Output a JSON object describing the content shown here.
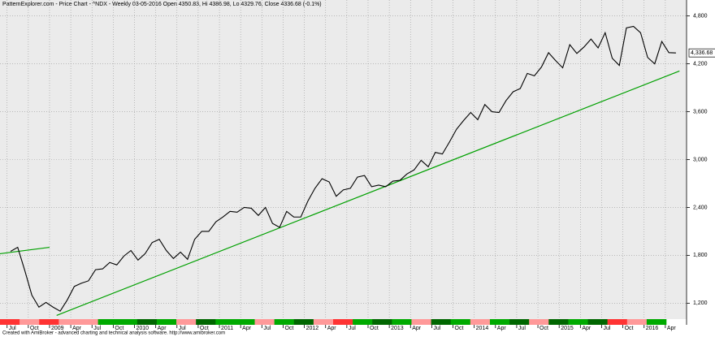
{
  "chart_data": {
    "type": "line",
    "title": "PatternExplorer.com - Price Chart - ^NDX - Weekly 03-05-2016 Open 4350.83, Hi 4386.98, Lo 4329.76, Close 4336.68 (-0.1%)",
    "footer": "Created with AmiBroker - advanced charting and technical analysis software. http://www.amibroker.com",
    "x": [
      "2008-07",
      "2008-08",
      "2008-09",
      "2008-10",
      "2008-11",
      "2008-12",
      "2009-01",
      "2009-02",
      "2009-03",
      "2009-04",
      "2009-05",
      "2009-06",
      "2009-07",
      "2009-08",
      "2009-09",
      "2009-10",
      "2009-11",
      "2009-12",
      "2010-01",
      "2010-02",
      "2010-03",
      "2010-04",
      "2010-05",
      "2010-06",
      "2010-07",
      "2010-08",
      "2010-09",
      "2010-10",
      "2010-11",
      "2010-12",
      "2011-01",
      "2011-02",
      "2011-03",
      "2011-04",
      "2011-05",
      "2011-06",
      "2011-07",
      "2011-08",
      "2011-09",
      "2011-10",
      "2011-11",
      "2011-12",
      "2012-01",
      "2012-02",
      "2012-03",
      "2012-04",
      "2012-05",
      "2012-06",
      "2012-07",
      "2012-08",
      "2012-09",
      "2012-10",
      "2012-11",
      "2012-12",
      "2013-01",
      "2013-02",
      "2013-03",
      "2013-04",
      "2013-05",
      "2013-06",
      "2013-07",
      "2013-08",
      "2013-09",
      "2013-10",
      "2013-11",
      "2013-12",
      "2014-01",
      "2014-02",
      "2014-03",
      "2014-04",
      "2014-05",
      "2014-06",
      "2014-07",
      "2014-08",
      "2014-09",
      "2014-10",
      "2014-11",
      "2014-12",
      "2015-01",
      "2015-02",
      "2015-03",
      "2015-04",
      "2015-05",
      "2015-06",
      "2015-07",
      "2015-08",
      "2015-09",
      "2015-10",
      "2015-11",
      "2015-12",
      "2016-01",
      "2016-02",
      "2016-03",
      "2016-04",
      "2016-05"
    ],
    "series": [
      {
        "name": "^NDX",
        "color": "#000000",
        "values": [
          1850,
          1900,
          1610,
          1300,
          1150,
          1210,
          1150,
          1100,
          1240,
          1410,
          1450,
          1480,
          1620,
          1630,
          1710,
          1680,
          1790,
          1860,
          1740,
          1820,
          1960,
          2000,
          1860,
          1760,
          1840,
          1750,
          2000,
          2100,
          2100,
          2220,
          2280,
          2350,
          2340,
          2400,
          2390,
          2300,
          2400,
          2200,
          2150,
          2350,
          2280,
          2280,
          2480,
          2640,
          2760,
          2720,
          2540,
          2620,
          2640,
          2780,
          2800,
          2660,
          2680,
          2660,
          2730,
          2740,
          2820,
          2870,
          2990,
          2910,
          3090,
          3070,
          3220,
          3380,
          3490,
          3590,
          3500,
          3690,
          3600,
          3590,
          3740,
          3850,
          3890,
          4080,
          4050,
          4160,
          4340,
          4240,
          4150,
          4440,
          4330,
          4410,
          4510,
          4400,
          4590,
          4270,
          4180,
          4650,
          4670,
          4590,
          4280,
          4200,
          4480,
          4340,
          4337
        ]
      }
    ],
    "last": {
      "value": 4336.68,
      "label": "4,336.68"
    },
    "trendlines": [
      {
        "color": "#00a000",
        "x": [
          "2008-06",
          "2009-01"
        ],
        "y": [
          1820,
          1900
        ]
      },
      {
        "color": "#00a000",
        "x": [
          "2009-02",
          "2016-06"
        ],
        "y": [
          1047,
          4110
        ]
      }
    ],
    "xlim": [
      "2008-06",
      "2016-07"
    ],
    "xticks": [
      {
        "value": "2008-07",
        "label": "Jul"
      },
      {
        "value": "2008-10",
        "label": "Oct"
      },
      {
        "value": "2009-01",
        "label": "2009"
      },
      {
        "value": "2009-04",
        "label": "Apr"
      },
      {
        "value": "2009-07",
        "label": "Jul"
      },
      {
        "value": "2009-10",
        "label": "Oct"
      },
      {
        "value": "2010-01",
        "label": "2010"
      },
      {
        "value": "2010-04",
        "label": "Apr"
      },
      {
        "value": "2010-07",
        "label": "Jul"
      },
      {
        "value": "2010-10",
        "label": "Oct"
      },
      {
        "value": "2011-01",
        "label": "2011"
      },
      {
        "value": "2011-04",
        "label": "Apr"
      },
      {
        "value": "2011-07",
        "label": "Jul"
      },
      {
        "value": "2011-10",
        "label": "Oct"
      },
      {
        "value": "2012-01",
        "label": "2012"
      },
      {
        "value": "2012-04",
        "label": "Apr"
      },
      {
        "value": "2012-07",
        "label": "Jul"
      },
      {
        "value": "2012-10",
        "label": "Oct"
      },
      {
        "value": "2013-01",
        "label": "2013"
      },
      {
        "value": "2013-04",
        "label": "Apr"
      },
      {
        "value": "2013-07",
        "label": "Jul"
      },
      {
        "value": "2013-10",
        "label": "Oct"
      },
      {
        "value": "2014-01",
        "label": "2014"
      },
      {
        "value": "2014-04",
        "label": "Apr"
      },
      {
        "value": "2014-07",
        "label": "Jul"
      },
      {
        "value": "2014-10",
        "label": "Oct"
      },
      {
        "value": "2015-01",
        "label": "2015"
      },
      {
        "value": "2015-04",
        "label": "Apr"
      },
      {
        "value": "2015-07",
        "label": "Jul"
      },
      {
        "value": "2015-10",
        "label": "Oct"
      },
      {
        "value": "2016-01",
        "label": "2016"
      },
      {
        "value": "2016-04",
        "label": "Apr"
      }
    ],
    "ylim": [
      1000,
      5000
    ],
    "yticks": [
      {
        "value": 1200,
        "label": "1,200"
      },
      {
        "value": 1800,
        "label": "1,800"
      },
      {
        "value": 2400,
        "label": "2,400"
      },
      {
        "value": 3000,
        "label": "3,000"
      },
      {
        "value": 3600,
        "label": "3,600"
      },
      {
        "value": 4200,
        "label": "4,200"
      },
      {
        "value": 4800,
        "label": "4,800"
      }
    ],
    "grid": true,
    "signal_strip": [
      "#ff3333",
      "#ff9999",
      "#ff3333",
      "#ff9999",
      "#ff9999",
      "#00aa00",
      "#00aa00",
      "#006600",
      "#00aa00",
      "#ff9999",
      "#006600",
      "#00aa00",
      "#00aa00",
      "#ff9999",
      "#00aa00",
      "#006600",
      "#ff9999",
      "#ff3333",
      "#00aa00",
      "#006600",
      "#00aa00",
      "#ff9999",
      "#006600",
      "#00aa00",
      "#ff9999",
      "#00aa00",
      "#006600",
      "#ff9999",
      "#006600",
      "#00aa00",
      "#006600",
      "#ff3333",
      "#ff9999",
      "#00aa00"
    ]
  }
}
